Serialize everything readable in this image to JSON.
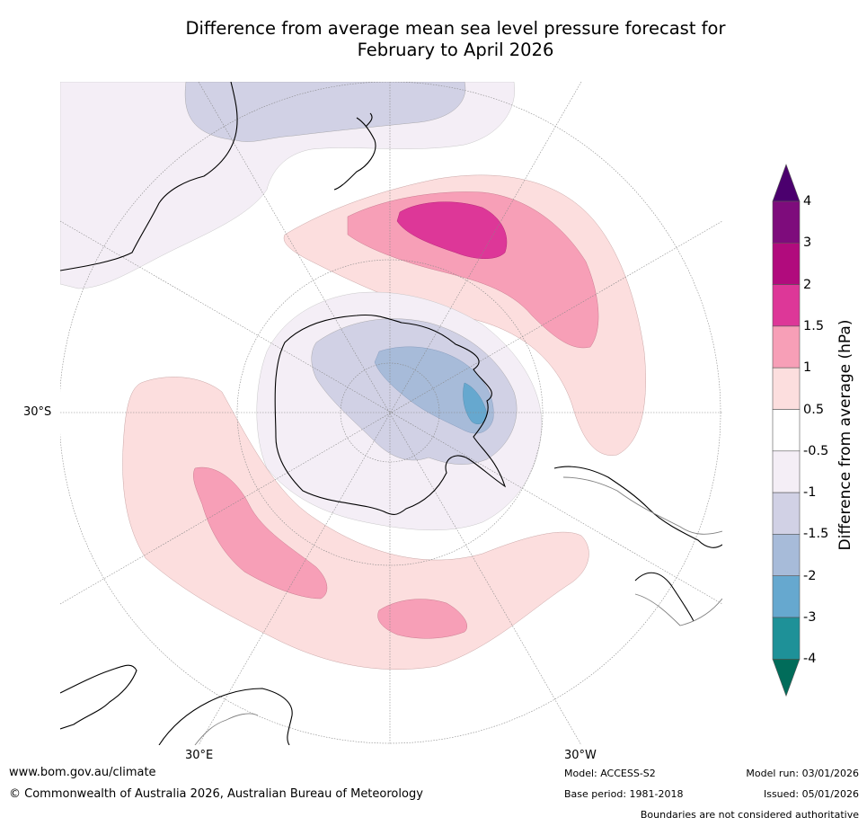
{
  "title": {
    "line1": "Difference from average mean sea level pressure forecast for",
    "line2": "February to April 2026"
  },
  "map": {
    "projection": "south-polar-stereographic",
    "labels": {
      "lat": "30°S",
      "lon_east": "30°E",
      "lon_west": "30°W"
    },
    "colors": {
      "land_outline": "#000000",
      "secondary_outline": "#808080",
      "graticule": "#888888"
    }
  },
  "colorbar": {
    "title": "Difference from average (hPa)",
    "ticks": [
      "4",
      "3",
      "2",
      "1.5",
      "1",
      "0.5",
      "-0.5",
      "-1",
      "-1.5",
      "-2",
      "-3",
      "-4"
    ],
    "bands": [
      {
        "range": "3 to 4",
        "color": "#7e0c7c"
      },
      {
        "range": "2 to 3",
        "color": "#b10b7d"
      },
      {
        "range": "1.5 to 2",
        "color": "#dd3798"
      },
      {
        "range": "1 to 1.5",
        "color": "#f79fb7"
      },
      {
        "range": "0.5 to 1",
        "color": "#fcdede"
      },
      {
        "range": "-0.5 to 0.5",
        "color": "#ffffff"
      },
      {
        "range": "-1 to -0.5",
        "color": "#f4eef6"
      },
      {
        "range": "-1.5 to -1",
        "color": "#d1d1e5"
      },
      {
        "range": "-2 to -1.5",
        "color": "#a7bbd9"
      },
      {
        "range": "-3 to -2",
        "color": "#66a8cf"
      },
      {
        "range": "-4 to -3",
        "color": "#1e9198"
      }
    ],
    "over_color": "#4b006e",
    "under_color": "#016c5a"
  },
  "footer": {
    "website": "www.bom.gov.au/climate",
    "copyright": "© Commonwealth of Australia 2026, Australian Bureau of Meteorology",
    "model": "Model: ACCESS-S2",
    "base_period": "Base period: 1981-2018",
    "model_run": "Model run: 03/01/2026",
    "issued": "Issued: 05/01/2026",
    "disclaimer": "Boundaries are not considered authoritative"
  }
}
